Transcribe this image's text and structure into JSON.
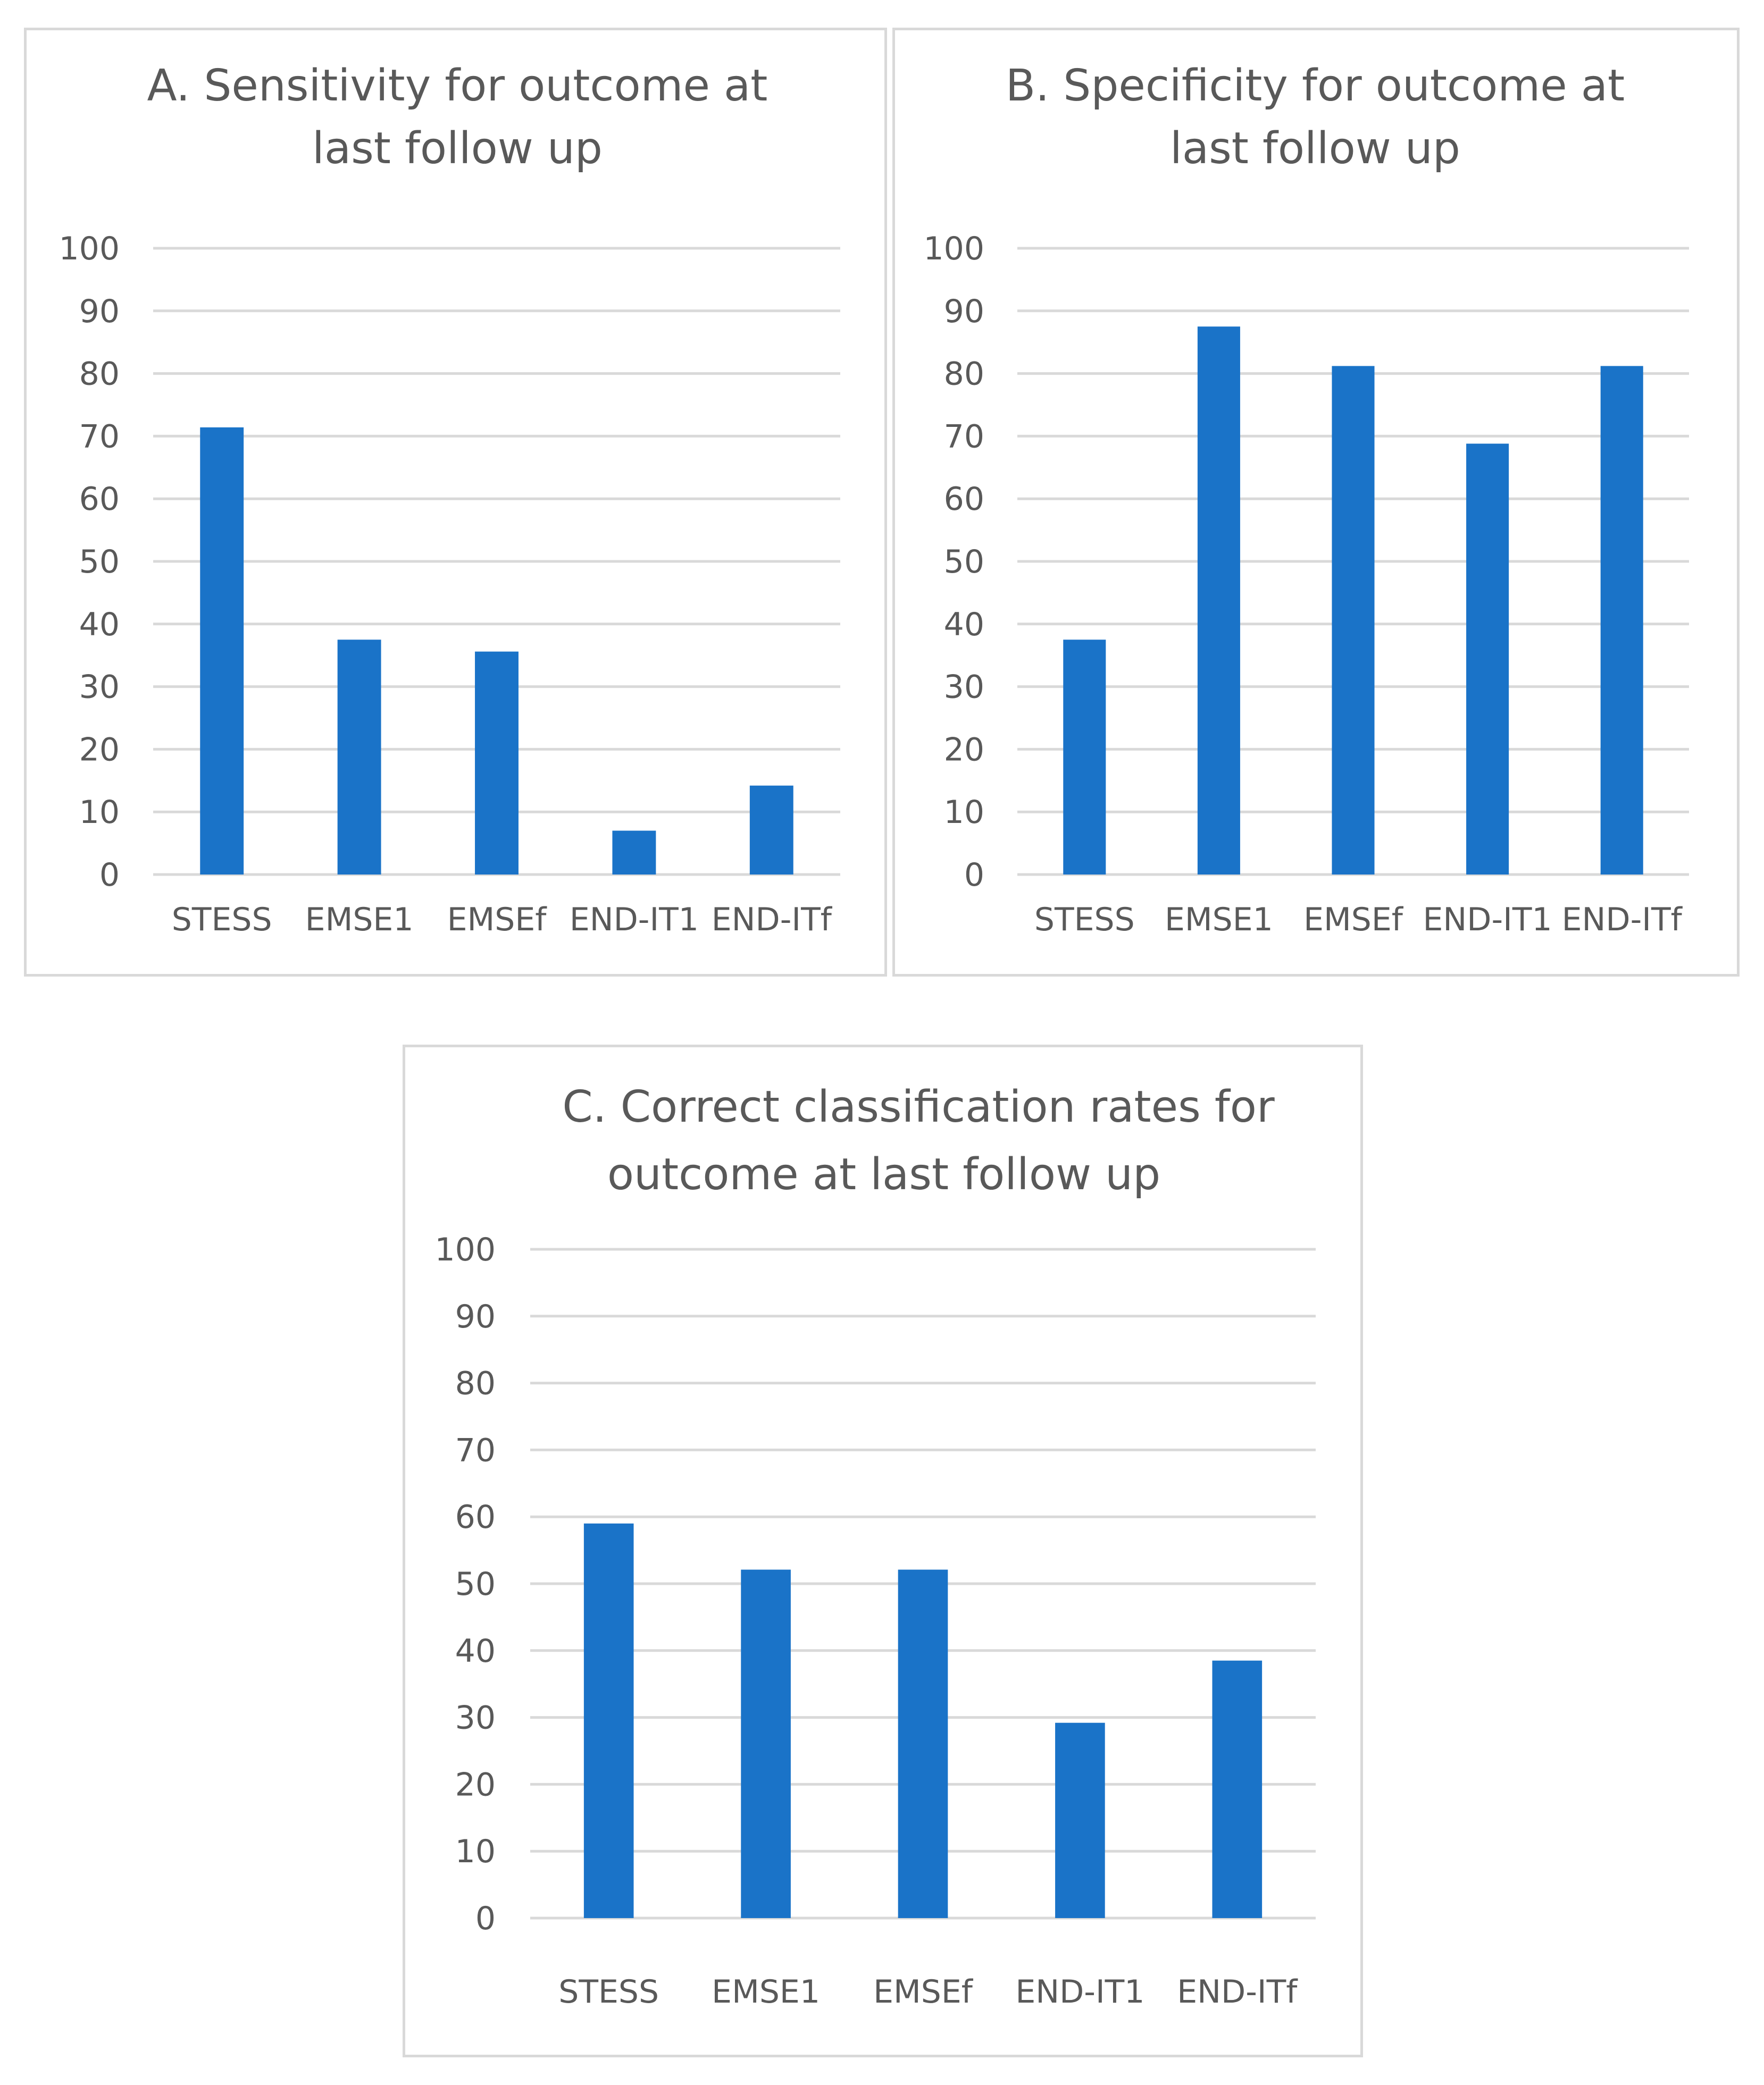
{
  "colors": {
    "bar": "#1a73c8",
    "grid": "#d9d9d9",
    "text": "#595959",
    "border": "#d9d9d9"
  },
  "chart_data": [
    {
      "type": "bar",
      "title": "A. Sensitivity for outcome at last follow up",
      "title_lines": [
        "A. Sensitivity for outcome at",
        "last follow up"
      ],
      "categories": [
        "STESS",
        "EMSE1",
        "EMSEf",
        "END-IT1",
        "END-ITf"
      ],
      "values": [
        71.4,
        37.5,
        35.6,
        7,
        14.2
      ],
      "xlabel": "",
      "ylabel": "",
      "ylim": [
        0,
        100
      ],
      "yticks": [
        "0",
        "10",
        "20",
        "30",
        "40",
        "50",
        "60",
        "70",
        "80",
        "90",
        "100"
      ],
      "grid": true
    },
    {
      "type": "bar",
      "title": "B. Specificity for outcome at last follow up",
      "title_lines": [
        "B. Specificity for outcome at",
        "last follow up"
      ],
      "categories": [
        "STESS",
        "EMSE1",
        "EMSEf",
        "END-IT1",
        "END-ITf"
      ],
      "values": [
        37.5,
        87.5,
        81.2,
        68.8,
        81.2
      ],
      "xlabel": "",
      "ylabel": "",
      "ylim": [
        0,
        100
      ],
      "yticks": [
        "0",
        "10",
        "20",
        "30",
        "40",
        "50",
        "60",
        "70",
        "80",
        "90",
        "100"
      ],
      "grid": true
    },
    {
      "type": "bar",
      "title": "C. Correct classification rates for outcome at last follow up",
      "title_lines": [
        "C. Correct classification rates for",
        "outcome at last follow up"
      ],
      "categories": [
        "STESS",
        "EMSE1",
        "EMSEf",
        "END-IT1",
        "END-ITf"
      ],
      "values": [
        59,
        52.1,
        52.1,
        29.2,
        38.5
      ],
      "xlabel": "",
      "ylabel": "",
      "ylim": [
        0,
        100
      ],
      "yticks": [
        "0",
        "10",
        "20",
        "30",
        "40",
        "50",
        "60",
        "70",
        "80",
        "90",
        "100"
      ],
      "grid": true
    }
  ]
}
